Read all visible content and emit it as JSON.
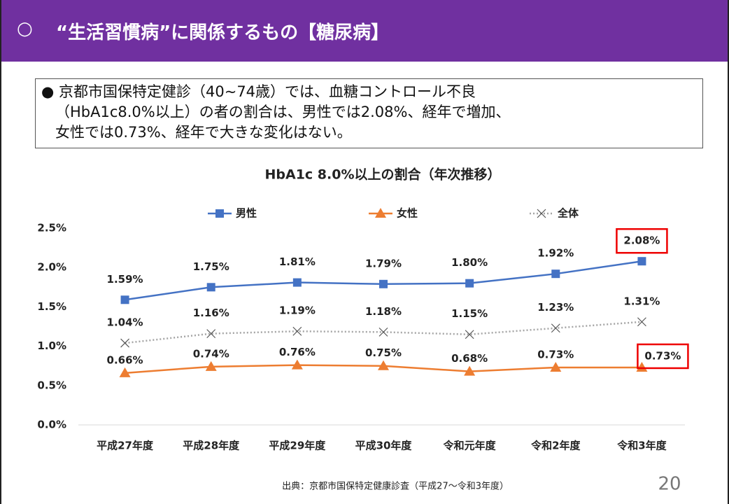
{
  "header": {
    "marker": "○",
    "title": "“生活習慣病”に関係するもの【糖尿病】"
  },
  "summary": {
    "lines": [
      "● 京都市国保特定健診（40~74歳）では、血糖コントロール不良",
      "（HbA1c8.0%以上）の者の割合は、男性では2.08%、経年で増加、",
      "女性では0.73%、経年で大きな変化はない。"
    ]
  },
  "chart_data": {
    "type": "line",
    "title": "HbA1c 8.0%以上の割合（年次推移）",
    "categories": [
      "平成27年度",
      "平成28年度",
      "平成29年度",
      "平成30年度",
      "令和元年度",
      "令和2年度",
      "令和3年度"
    ],
    "series": [
      {
        "name": "男性",
        "color": "#4472c4",
        "marker": "square",
        "values": [
          1.59,
          1.75,
          1.81,
          1.79,
          1.8,
          1.92,
          2.08
        ],
        "value_labels": [
          "1.59%",
          "1.75%",
          "1.81%",
          "1.79%",
          "1.80%",
          "1.92%",
          "2.08%"
        ]
      },
      {
        "name": "女性",
        "color": "#ed7d31",
        "marker": "triangle",
        "values": [
          0.66,
          0.74,
          0.76,
          0.75,
          0.68,
          0.73,
          0.73
        ],
        "value_labels": [
          "0.66%",
          "0.74%",
          "0.76%",
          "0.75%",
          "0.68%",
          "0.73%",
          "0.73%"
        ]
      },
      {
        "name": "全体",
        "color": "#a5a5a5",
        "marker": "x",
        "dashed": true,
        "values": [
          1.04,
          1.16,
          1.19,
          1.18,
          1.15,
          1.23,
          1.31
        ],
        "value_labels": [
          "1.04%",
          "1.16%",
          "1.19%",
          "1.18%",
          "1.15%",
          "1.23%",
          "1.31%"
        ]
      }
    ],
    "ylim": [
      0,
      2.5
    ],
    "yticks": [
      {
        "value": 0,
        "label": "0.0%"
      },
      {
        "value": 0.5,
        "label": "0.5%"
      },
      {
        "value": 1.0,
        "label": "1.0%"
      },
      {
        "value": 1.5,
        "label": "1.5%"
      },
      {
        "value": 2.0,
        "label": "2.0%"
      },
      {
        "value": 2.5,
        "label": "2.5%"
      }
    ],
    "grid": false,
    "legend": "top"
  },
  "footer": {
    "source": "出典：京都市国保特定健康診査（平成27～令和3年度）",
    "page": "20"
  }
}
